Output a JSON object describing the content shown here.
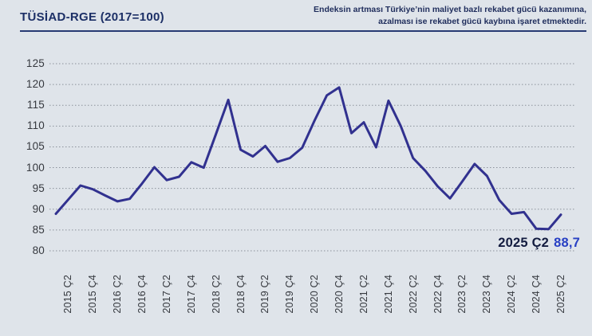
{
  "header": {
    "title": "TÜSİAD-RGE (2017=100)",
    "note_line1": "Endeksin artması Türkiye’nin maliyet bazlı rekabet gücü kazanımına,",
    "note_line2": "azalması ise rekabet gücü kaybına işaret etmektedir."
  },
  "annotation": {
    "label": "2025 Ç2",
    "value": "88,7"
  },
  "colors": {
    "background": "#dfe4ea",
    "line": "#31318f",
    "title": "#1c2f66",
    "note": "#1f2d5c",
    "rule": "#273a73",
    "grid": "#8b919b",
    "axis_text": "#35383e",
    "annotation_label": "#121b3f",
    "annotation_value": "#2840c4"
  },
  "chart_data": {
    "type": "line",
    "title": "TÜSİAD-RGE (2017=100)",
    "x": [
      "2015 Ç1",
      "2015 Ç2",
      "2015 Ç3",
      "2015 Ç4",
      "2016 Ç1",
      "2016 Ç2",
      "2016 Ç3",
      "2016 Ç4",
      "2017 Ç1",
      "2017 Ç2",
      "2017 Ç3",
      "2017 Ç4",
      "2018 Ç1",
      "2018 Ç2",
      "2018 Ç3",
      "2018 Ç4",
      "2019 Ç1",
      "2019 Ç2",
      "2019 Ç3",
      "2019 Ç4",
      "2020 Ç1",
      "2020 Ç2",
      "2020 Ç3",
      "2020 Ç4",
      "2021 Ç1",
      "2021 Ç2",
      "2021 Ç3",
      "2021 Ç4",
      "2022 Ç1",
      "2022 Ç2",
      "2022 Ç3",
      "2022 Ç4",
      "2023 Ç1",
      "2023 Ç2",
      "2023 Ç3",
      "2023 Ç4",
      "2024 Ç1",
      "2024 Ç2",
      "2024 Ç3",
      "2024 Ç4",
      "2025 Ç1",
      "2025 Ç2"
    ],
    "values": [
      88.9,
      92.3,
      95.7,
      94.8,
      93.3,
      91.9,
      92.5,
      96.2,
      100.1,
      97.0,
      97.8,
      101.3,
      100.0,
      108.1,
      116.3,
      104.3,
      102.7,
      105.2,
      101.4,
      102.3,
      104.8,
      111.3,
      117.4,
      119.3,
      108.3,
      110.9,
      104.9,
      116.1,
      110.0,
      102.3,
      99.2,
      95.5,
      92.6,
      96.7,
      100.9,
      98.0,
      92.2,
      88.9,
      89.3,
      85.3,
      85.2,
      88.7
    ],
    "x_tick_start": 1,
    "x_tick_every": 2,
    "x_tick_labels": [
      "2015 Ç2",
      "2015 Ç4",
      "2016 Ç2",
      "2016 Ç4",
      "2017 Ç2",
      "2017 Ç4",
      "2018 Ç2",
      "2018 Ç4",
      "2019 Ç2",
      "2019 Ç4",
      "2020 Ç2",
      "2020 Ç4",
      "2021 Ç2",
      "2021 Ç4",
      "2022 Ç2",
      "2022 Ç4",
      "2023 Ç2",
      "2023 Ç4",
      "2024 Ç2",
      "2024 Ç4",
      "2025 Ç2"
    ],
    "y_ticks": [
      125,
      120,
      115,
      110,
      105,
      100,
      95,
      90,
      85,
      80
    ],
    "ylim": [
      80,
      125
    ],
    "grid": "horizontal-dotted",
    "legend": "none",
    "last_point_label": "2025 Ç2 88,7"
  }
}
